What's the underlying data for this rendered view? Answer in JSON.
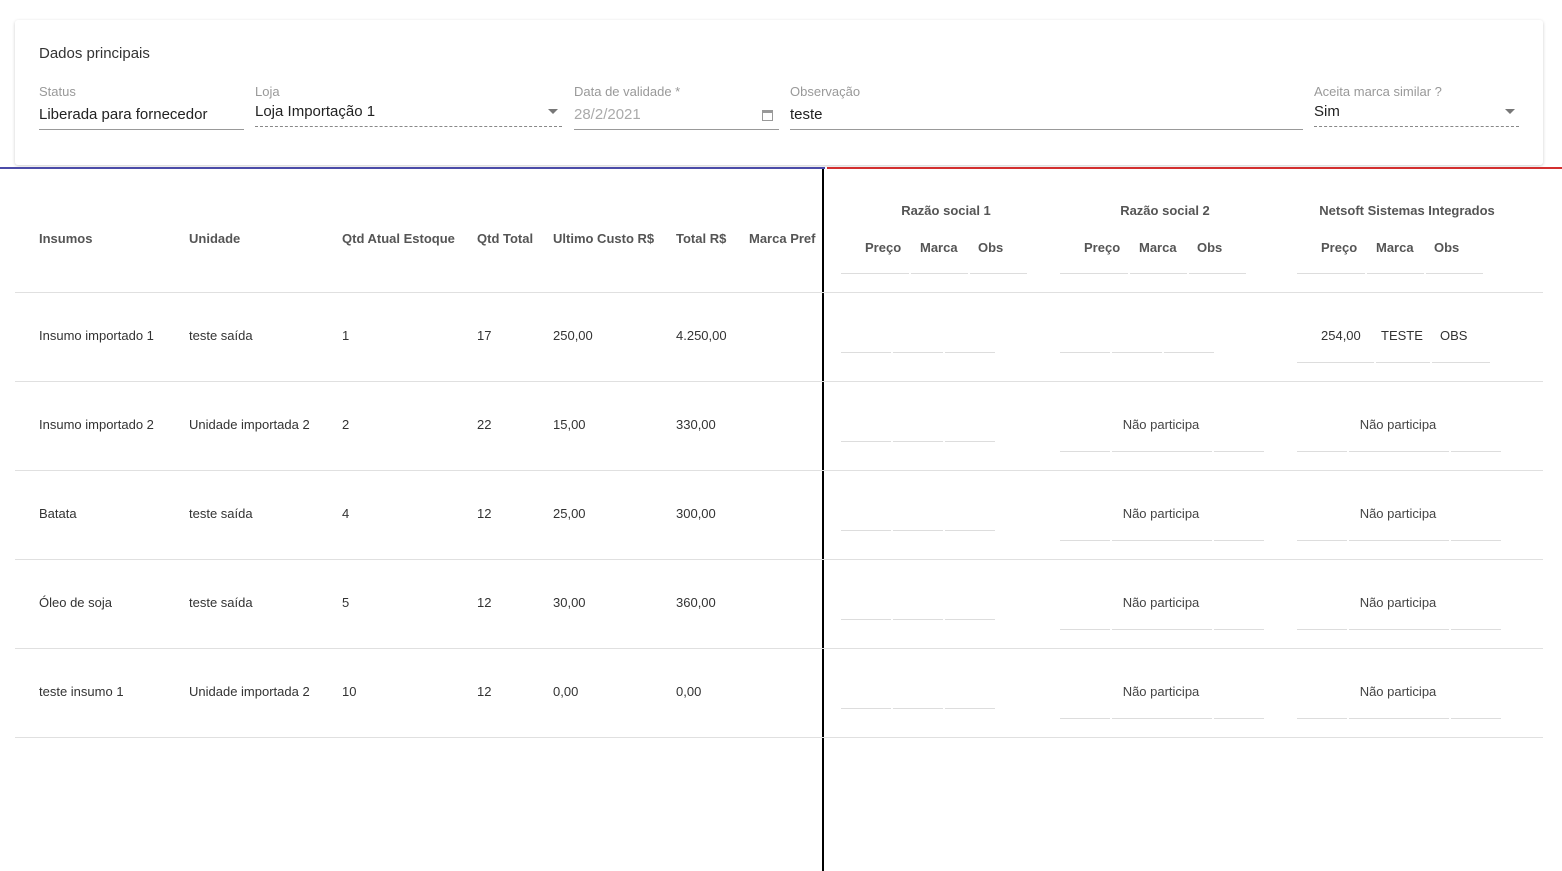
{
  "card": {
    "title": "Dados principais",
    "status": {
      "label": "Status",
      "value": "Liberada para fornecedor"
    },
    "loja": {
      "label": "Loja",
      "value": "Loja Importação 1"
    },
    "data_validade": {
      "label": "Data de validade *",
      "value": "28/2/2021"
    },
    "observacao": {
      "label": "Observação",
      "value": "teste"
    },
    "aceita_marca": {
      "label": "Aceita marca similar ?",
      "value": "Sim"
    }
  },
  "table": {
    "headers": [
      "Insumos",
      "Unidade",
      "Qtd Atual Estoque",
      "Qtd Total",
      "Ultimo Custo R$",
      "Total R$",
      "Marca Pref"
    ],
    "suppliers": [
      {
        "name": "Razão social 1"
      },
      {
        "name": "Razão social 2"
      },
      {
        "name": "Netsoft Sistemas Integrados"
      }
    ],
    "sub_headers": [
      "Preço",
      "Marca",
      "Obs"
    ],
    "rows": [
      {
        "cells": [
          "Insumo importado 1",
          "teste saída",
          "1",
          "17",
          "250,00",
          "4.250,00",
          ""
        ],
        "s": [
          null,
          null,
          [
            "254,00",
            "TESTE",
            "OBS"
          ]
        ]
      },
      {
        "cells": [
          "Insumo importado 2",
          "Unidade importada 2",
          "2",
          "22",
          "15,00",
          "330,00",
          ""
        ],
        "s": [
          null,
          "Não participa",
          "Não participa"
        ]
      },
      {
        "cells": [
          "Batata",
          "teste saída",
          "4",
          "12",
          "25,00",
          "300,00",
          ""
        ],
        "s": [
          null,
          "Não participa",
          "Não participa"
        ]
      },
      {
        "cells": [
          "Óleo de soja",
          "teste saída",
          "5",
          "12",
          "30,00",
          "360,00",
          ""
        ],
        "s": [
          null,
          "Não participa",
          "Não participa"
        ]
      },
      {
        "cells": [
          "teste insumo 1",
          "Unidade importada 2",
          "10",
          "12",
          "0,00",
          "0,00",
          ""
        ],
        "s": [
          null,
          "Não participa",
          "Não participa"
        ]
      }
    ]
  }
}
